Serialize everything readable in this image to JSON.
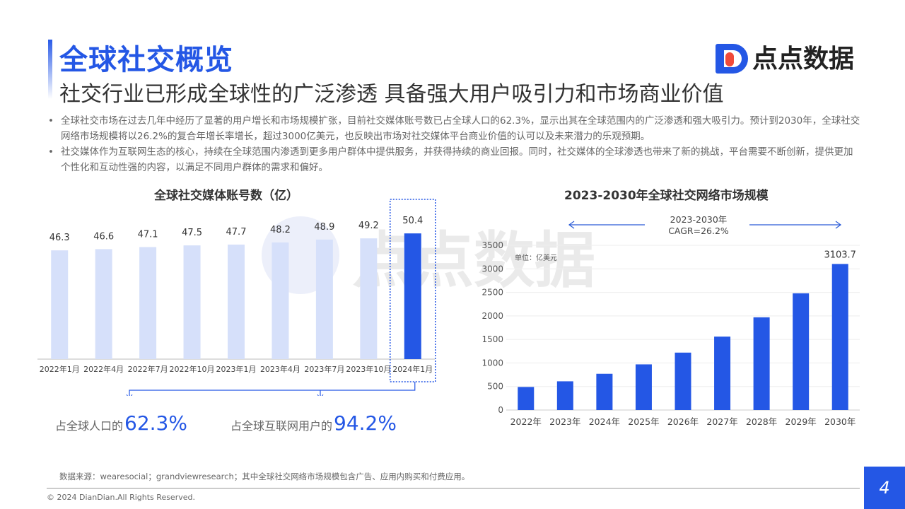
{
  "header": {
    "title": "全球社交概览",
    "subtitle": "社交行业已形成全球性的广泛渗透 具备强大用户吸引力和市场商业价值",
    "logo_text": "点点数据"
  },
  "bullets": [
    "全球社交市场在过去几年中经历了显著的用户增长和市场规模扩张，目前社交媒体账号数已占全球人口的62.3%，显示出其在全球范围内的广泛渗透和强大吸引力。预计到2030年，全球社交网络市场规模将以26.2%的复合年增长率增长，超过3000亿美元，也反映出市场对社交媒体平台商业价值的认可以及未来潜力的乐观预期。",
    "社交媒体作为互联网生态的核心，持续在全球范围内渗透到更多用户群体中提供服务，并获得持续的商业回报。同时，社交媒体的全球渗透也带来了新的挑战，平台需要不断创新，提供更加个性化和互动性强的内容，以满足不同用户群体的需求和偏好。"
  ],
  "stats": [
    {
      "label": "占全球人口的",
      "value": "62.3%"
    },
    {
      "label": "占全球互联网用户的",
      "value": "94.2%"
    }
  ],
  "footer": {
    "source": "数据来源：wearesocial；grandviewresearch；其中全球社交网络市场规模包含广告、应用内购买和付费应用。",
    "copyright": "© 2024 DianDian.All Rights Reserved.",
    "page": "4"
  },
  "colors": {
    "accent": "#2457e5",
    "light_bar": "#d6e0fa",
    "highlight": "#f04a3a"
  },
  "chart_data": [
    {
      "type": "bar",
      "title": "全球社交媒体账号数（亿）",
      "categories": [
        "2022年1月",
        "2022年4月",
        "2022年7月",
        "2022年10月",
        "2023年1月",
        "2023年4月",
        "2023年7月",
        "2023年10月",
        "2024年1月"
      ],
      "values": [
        46.3,
        46.6,
        47.1,
        47.5,
        47.7,
        48.2,
        48.9,
        49.2,
        50.4
      ],
      "labels": [
        "46.3",
        "46.6",
        "47.1",
        "47.5",
        "47.7",
        "48.2",
        "48.9",
        "49.2",
        "50.4"
      ],
      "highlight_index": 8,
      "ylim": [
        20,
        55
      ],
      "grid": false
    },
    {
      "type": "bar",
      "title": "2023-2030年全球社交网络市场规模",
      "categories": [
        "2022年",
        "2023年",
        "2024年",
        "2025年",
        "2026年",
        "2027年",
        "2028年",
        "2029年",
        "2030年"
      ],
      "values": [
        490,
        610,
        770,
        970,
        1220,
        1560,
        1970,
        2480,
        3103.7
      ],
      "last_label": "3103.7",
      "unit": "单位：亿美元",
      "annotation": [
        "2023-2030年",
        "CAGR=26.2%"
      ],
      "yticks": [
        0,
        500,
        1000,
        1500,
        2000,
        2500,
        3000,
        3500
      ],
      "ylim": [
        0,
        3500
      ],
      "grid": true
    }
  ]
}
